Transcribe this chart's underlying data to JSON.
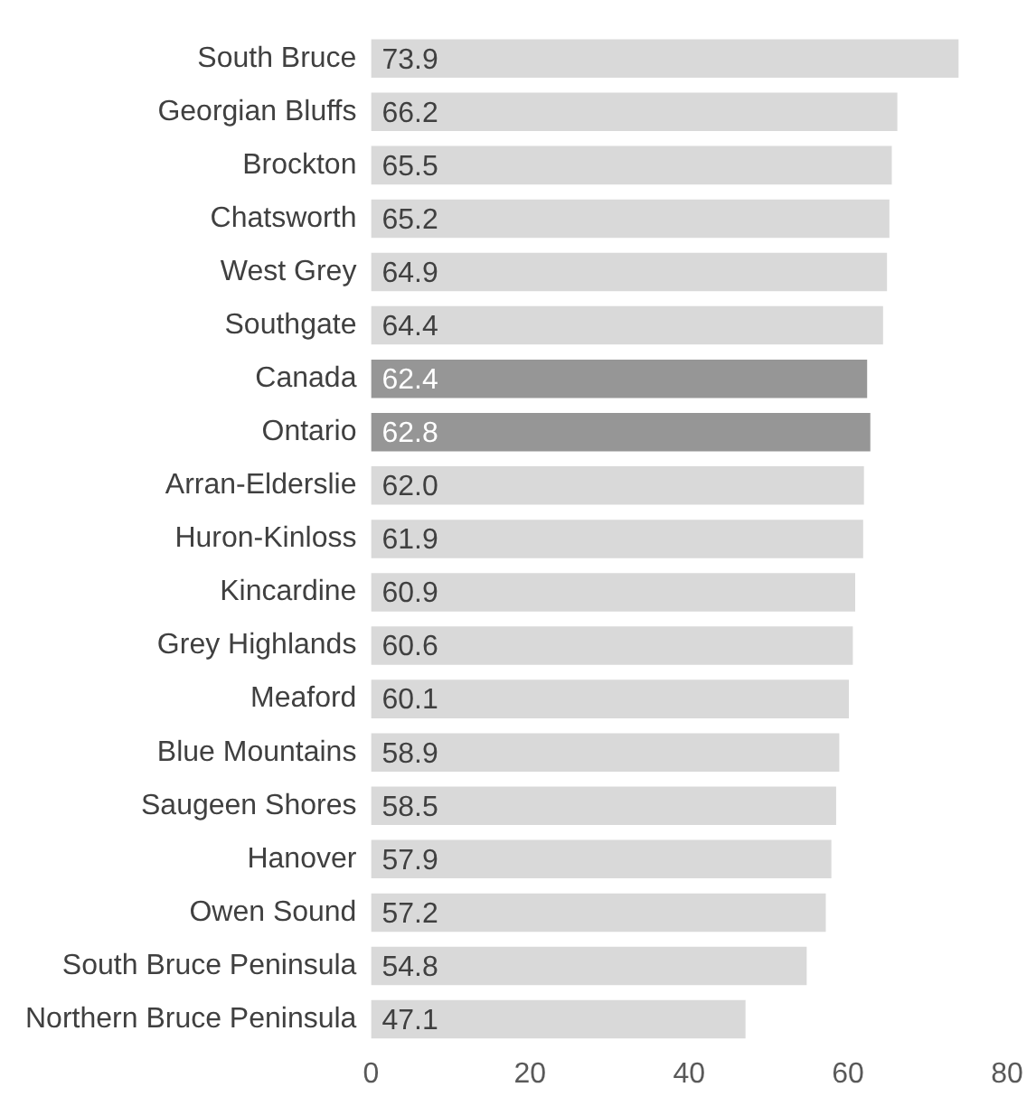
{
  "chart_data": {
    "type": "bar",
    "orientation": "horizontal",
    "categories": [
      "South Bruce",
      "Georgian Bluffs",
      "Brockton",
      "Chatsworth",
      "West Grey",
      "Southgate",
      "Canada",
      "Ontario",
      "Arran-Elderslie",
      "Huron-Kinloss",
      "Kincardine",
      "Grey Highlands",
      "Meaford",
      "Blue Mountains",
      "Saugeen Shores",
      "Hanover",
      "Owen Sound",
      "South Bruce Peninsula",
      "Northern Bruce Peninsula"
    ],
    "values": [
      73.9,
      66.2,
      65.5,
      65.2,
      64.9,
      64.4,
      62.4,
      62.8,
      62.0,
      61.9,
      60.9,
      60.6,
      60.1,
      58.9,
      58.5,
      57.9,
      57.2,
      54.8,
      47.1
    ],
    "value_labels": [
      "73.9",
      "66.2",
      "65.5",
      "65.2",
      "64.9",
      "64.4",
      "62.4",
      "62.8",
      "62.0",
      "61.9",
      "60.9",
      "60.6",
      "60.1",
      "58.9",
      "58.5",
      "57.9",
      "57.2",
      "54.8",
      "47.1"
    ],
    "colors": [
      "#d9d9d9",
      "#d9d9d9",
      "#d9d9d9",
      "#d9d9d9",
      "#d9d9d9",
      "#d9d9d9",
      "#969696",
      "#969696",
      "#d9d9d9",
      "#d9d9d9",
      "#d9d9d9",
      "#d9d9d9",
      "#d9d9d9",
      "#d9d9d9",
      "#d9d9d9",
      "#d9d9d9",
      "#d9d9d9",
      "#d9d9d9",
      "#d9d9d9"
    ],
    "xlim": [
      0,
      80
    ],
    "xticks": [
      0,
      20,
      40,
      60,
      80
    ],
    "grid": false,
    "legend": false
  }
}
